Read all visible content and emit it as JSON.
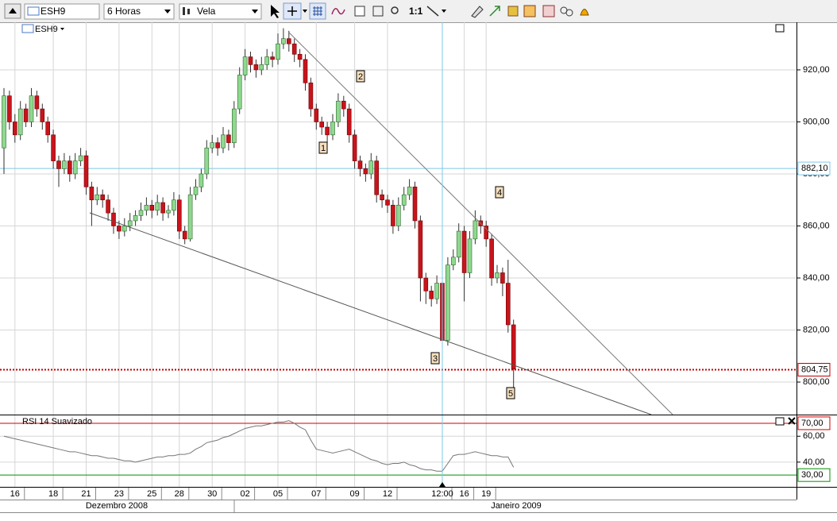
{
  "toolbar": {
    "symbol": "ESH9",
    "interval": "6 Horas",
    "style": "Vela",
    "zoom": "1:1"
  },
  "chart_data": [
    {
      "type": "candlestick",
      "title": "ESH9",
      "categories": [
        null,
        null,
        "16",
        null,
        null,
        null,
        null,
        null,
        null,
        "18",
        null,
        null,
        null,
        null,
        null,
        "21",
        null,
        null,
        null,
        null,
        null,
        "23",
        null,
        null,
        null,
        null,
        null,
        "25",
        null,
        null,
        null,
        null,
        "28",
        null,
        null,
        null,
        null,
        null,
        "30",
        null,
        null,
        null,
        null,
        null,
        "02",
        null,
        null,
        null,
        null,
        null,
        "05",
        null,
        null,
        null,
        null,
        null,
        null,
        "07",
        null,
        null,
        null,
        null,
        null,
        null,
        "09",
        null,
        null,
        null,
        null,
        null,
        "12",
        null,
        null,
        null,
        null,
        null,
        null,
        null,
        null,
        null,
        "12:00",
        null,
        null,
        null,
        "16",
        null,
        null,
        null,
        "19",
        null,
        null,
        null,
        null,
        null
      ],
      "months": [
        "Dezembro 2008",
        "Janeiro 2009"
      ],
      "candles": [
        [
          890,
          913,
          880,
          910
        ],
        [
          910,
          912,
          897,
          900
        ],
        [
          900,
          903,
          892,
          895
        ],
        [
          895,
          908,
          893,
          905
        ],
        [
          905,
          907,
          898,
          900
        ],
        [
          900,
          913,
          898,
          910
        ],
        [
          910,
          912,
          902,
          905
        ],
        [
          905,
          907,
          897,
          900
        ],
        [
          900,
          902,
          892,
          895
        ],
        [
          895,
          897,
          882,
          885
        ],
        [
          885,
          887,
          875,
          882
        ],
        [
          882,
          888,
          880,
          885
        ],
        [
          885,
          887,
          877,
          880
        ],
        [
          880,
          888,
          878,
          885
        ],
        [
          885,
          890,
          883,
          887
        ],
        [
          887,
          889,
          872,
          875
        ],
        [
          875,
          877,
          860,
          870
        ],
        [
          870,
          875,
          868,
          872
        ],
        [
          872,
          874,
          867,
          870
        ],
        [
          870,
          872,
          862,
          865
        ],
        [
          865,
          867,
          857,
          860
        ],
        [
          860,
          862,
          855,
          858
        ],
        [
          858,
          863,
          856,
          860
        ],
        [
          860,
          865,
          858,
          862
        ],
        [
          862,
          866,
          860,
          864
        ],
        [
          864,
          869,
          862,
          866
        ],
        [
          866,
          871,
          864,
          868
        ],
        [
          868,
          870,
          863,
          866
        ],
        [
          866,
          872,
          864,
          869
        ],
        [
          869,
          871,
          862,
          865
        ],
        [
          865,
          868,
          863,
          866
        ],
        [
          866,
          873,
          864,
          870
        ],
        [
          870,
          872,
          855,
          858
        ],
        [
          858,
          860,
          853,
          855
        ],
        [
          855,
          875,
          854,
          872
        ],
        [
          872,
          878,
          870,
          875
        ],
        [
          875,
          882,
          873,
          880
        ],
        [
          880,
          893,
          878,
          890
        ],
        [
          890,
          895,
          888,
          892
        ],
        [
          892,
          894,
          887,
          890
        ],
        [
          890,
          898,
          888,
          895
        ],
        [
          895,
          897,
          889,
          892
        ],
        [
          892,
          908,
          890,
          905
        ],
        [
          905,
          921,
          903,
          918
        ],
        [
          918,
          928,
          916,
          925
        ],
        [
          925,
          927,
          919,
          922
        ],
        [
          922,
          924,
          917,
          920
        ],
        [
          920,
          925,
          918,
          922
        ],
        [
          922,
          928,
          920,
          925
        ],
        [
          925,
          927,
          921,
          924
        ],
        [
          924,
          934,
          922,
          930
        ],
        [
          930,
          936,
          928,
          932
        ],
        [
          932,
          935,
          927,
          930
        ],
        [
          930,
          932,
          923,
          926
        ],
        [
          926,
          928,
          921,
          924
        ],
        [
          924,
          926,
          912,
          915
        ],
        [
          915,
          917,
          902,
          905
        ],
        [
          905,
          907,
          897,
          900
        ],
        [
          900,
          902,
          895,
          898
        ],
        [
          898,
          900,
          892,
          895
        ],
        [
          895,
          903,
          893,
          900
        ],
        [
          900,
          911,
          898,
          908
        ],
        [
          908,
          910,
          902,
          905
        ],
        [
          905,
          907,
          892,
          895
        ],
        [
          895,
          897,
          882,
          885
        ],
        [
          885,
          887,
          879,
          882
        ],
        [
          882,
          884,
          877,
          880
        ],
        [
          880,
          888,
          878,
          885
        ],
        [
          885,
          887,
          869,
          872
        ],
        [
          872,
          874,
          867,
          870
        ],
        [
          870,
          872,
          865,
          868
        ],
        [
          868,
          870,
          857,
          860
        ],
        [
          860,
          871,
          858,
          868
        ],
        [
          868,
          875,
          866,
          872
        ],
        [
          872,
          878,
          870,
          875
        ],
        [
          875,
          877,
          859,
          862
        ],
        [
          862,
          864,
          831,
          840
        ],
        [
          840,
          842,
          830,
          835
        ],
        [
          835,
          837,
          829,
          832
        ],
        [
          832,
          841,
          830,
          838
        ],
        [
          838,
          840,
          813,
          816
        ],
        [
          816,
          848,
          814,
          845
        ],
        [
          845,
          851,
          843,
          848
        ],
        [
          848,
          861,
          846,
          858
        ],
        [
          858,
          860,
          831,
          842
        ],
        [
          842,
          858,
          840,
          855
        ],
        [
          855,
          866,
          853,
          862
        ],
        [
          862,
          864,
          857,
          860
        ],
        [
          860,
          862,
          852,
          855
        ],
        [
          855,
          857,
          837,
          840
        ],
        [
          840,
          845,
          838,
          842
        ],
        [
          842,
          844,
          833,
          838
        ],
        [
          838,
          847,
          819,
          822
        ],
        [
          822,
          824,
          797,
          805
        ]
      ],
      "colors": {
        "up": "#90d890",
        "down": "#c8141c"
      },
      "ylim": [
        787.5,
        938.3
      ],
      "yticks": [
        {
          "value": 800,
          "label": "800,00"
        },
        {
          "value": 820,
          "label": "820,00"
        },
        {
          "value": 840,
          "label": "840,00"
        },
        {
          "value": 860,
          "label": "860,00"
        },
        {
          "value": 880,
          "label": "880,00"
        },
        {
          "value": 900,
          "label": "900,00"
        },
        {
          "value": 920,
          "label": "920,00"
        }
      ],
      "price_lines": [
        {
          "value": 882.1,
          "label": "882,10",
          "color": "#7ec8e8"
        },
        {
          "value": 804.75,
          "label": "804,75",
          "color": "#c00000"
        }
      ],
      "annotations": [
        "1",
        "2",
        "3",
        "4",
        "5"
      ],
      "grid": true
    },
    {
      "type": "line",
      "title": "RSI 14 Suavizado",
      "color": "#777777",
      "values": [
        60,
        59,
        58,
        57,
        56,
        55,
        54,
        53,
        52,
        51,
        50,
        49,
        48,
        48,
        47,
        46,
        45,
        45,
        44,
        43,
        43,
        42,
        41,
        41,
        40,
        41,
        42,
        43,
        44,
        44,
        45,
        45,
        46,
        46,
        47,
        50,
        52,
        55,
        56,
        57,
        59,
        60,
        62,
        64,
        66,
        67,
        68,
        68,
        69,
        70,
        71,
        71,
        72,
        70,
        67,
        65,
        57,
        50,
        49,
        48,
        47,
        48,
        49,
        50,
        48,
        46,
        44,
        42,
        41,
        39,
        38,
        39,
        39,
        40,
        38,
        37,
        35,
        34,
        34,
        33,
        33,
        39,
        45,
        46,
        46,
        47,
        48,
        47,
        46,
        45,
        45,
        44,
        44,
        36
      ],
      "ylim": [
        20.9,
        76.1
      ],
      "yticks": [
        {
          "value": 40,
          "label": "40,00"
        },
        {
          "value": 60,
          "label": "60,00"
        }
      ],
      "levels": [
        {
          "value": 70,
          "label": "70,00",
          "color": "#d00000"
        },
        {
          "value": 30,
          "label": "30,00",
          "color": "#009000"
        }
      ],
      "grid": true
    }
  ]
}
